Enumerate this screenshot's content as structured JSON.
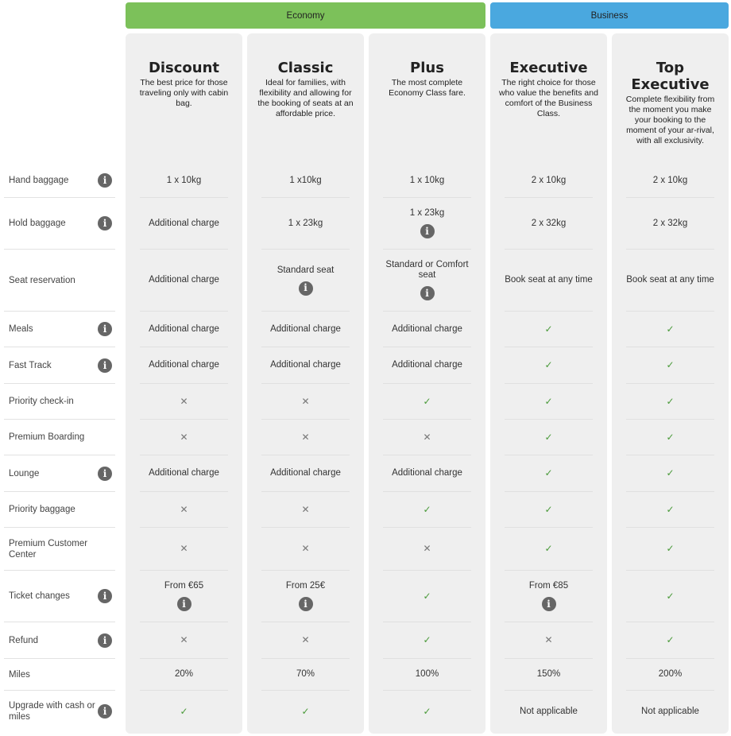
{
  "colors": {
    "economy": "#7cc15a",
    "business": "#4aa8df",
    "check": "#4a9a3a",
    "info": "#666666"
  },
  "groups": [
    {
      "id": "economy",
      "label": "Economy"
    },
    {
      "id": "business",
      "label": "Business"
    }
  ],
  "plans": [
    {
      "name": "Discount",
      "desc": "The best price for those traveling only with cabin bag."
    },
    {
      "name": "Classic",
      "desc": "Ideal for families, with flexibility and allowing for the booking of seats at an affordable price."
    },
    {
      "name": "Plus",
      "desc": "The most complete Economy Class fare."
    },
    {
      "name": "Executive",
      "desc": "The right choice for those who value the benefits and comfort of the Business Class."
    },
    {
      "name": "Top Executive",
      "desc": "Complete flexibility from the moment you make your booking to the moment of your ar-rival, with all exclusivity."
    }
  ],
  "rows": [
    {
      "label": "Hand baggage",
      "info": true,
      "cells": [
        {
          "text": "1 x 10kg"
        },
        {
          "text": "1 x10kg"
        },
        {
          "text": "1 x 10kg"
        },
        {
          "text": "2 x 10kg"
        },
        {
          "text": "2 x 10kg"
        }
      ]
    },
    {
      "label": "Hold baggage",
      "info": true,
      "cells": [
        {
          "text": "Additional charge"
        },
        {
          "text": "1 x 23kg"
        },
        {
          "text": "1 x 23kg",
          "info": true
        },
        {
          "text": "2 x 32kg"
        },
        {
          "text": "2 x 32kg"
        }
      ]
    },
    {
      "label": "Seat reservation",
      "info": false,
      "cells": [
        {
          "text": "Additional charge"
        },
        {
          "text": "Standard seat",
          "info": true
        },
        {
          "text": "Standard or Comfort seat",
          "info": true
        },
        {
          "text": "Book seat at any time"
        },
        {
          "text": "Book seat at any time"
        }
      ]
    },
    {
      "label": "Meals",
      "info": true,
      "cells": [
        {
          "text": "Additional charge"
        },
        {
          "text": "Additional charge"
        },
        {
          "text": "Additional charge"
        },
        {
          "icon": "check"
        },
        {
          "icon": "check"
        }
      ]
    },
    {
      "label": "Fast Track",
      "info": true,
      "cells": [
        {
          "text": "Additional charge"
        },
        {
          "text": "Additional charge"
        },
        {
          "text": "Additional charge"
        },
        {
          "icon": "check"
        },
        {
          "icon": "check"
        }
      ]
    },
    {
      "label": "Priority check-in",
      "info": false,
      "cells": [
        {
          "icon": "cross"
        },
        {
          "icon": "cross"
        },
        {
          "icon": "check"
        },
        {
          "icon": "check"
        },
        {
          "icon": "check"
        }
      ]
    },
    {
      "label": "Premium Boarding",
      "info": false,
      "cells": [
        {
          "icon": "cross"
        },
        {
          "icon": "cross"
        },
        {
          "icon": "cross"
        },
        {
          "icon": "check"
        },
        {
          "icon": "check"
        }
      ]
    },
    {
      "label": "Lounge",
      "info": true,
      "cells": [
        {
          "text": "Additional charge"
        },
        {
          "text": "Additional charge"
        },
        {
          "text": "Additional charge"
        },
        {
          "icon": "check"
        },
        {
          "icon": "check"
        }
      ]
    },
    {
      "label": "Priority baggage",
      "info": false,
      "cells": [
        {
          "icon": "cross"
        },
        {
          "icon": "cross"
        },
        {
          "icon": "check"
        },
        {
          "icon": "check"
        },
        {
          "icon": "check"
        }
      ]
    },
    {
      "label": "Premium Customer Center",
      "info": false,
      "cells": [
        {
          "icon": "cross"
        },
        {
          "icon": "cross"
        },
        {
          "icon": "cross"
        },
        {
          "icon": "check"
        },
        {
          "icon": "check"
        }
      ]
    },
    {
      "label": "Ticket changes",
      "info": true,
      "cells": [
        {
          "text": "From €65",
          "info": true
        },
        {
          "text": "From 25€",
          "info": true
        },
        {
          "icon": "check"
        },
        {
          "text": "From €85",
          "info": true
        },
        {
          "icon": "check"
        }
      ]
    },
    {
      "label": "Refund",
      "info": true,
      "cells": [
        {
          "icon": "cross"
        },
        {
          "icon": "cross"
        },
        {
          "icon": "check"
        },
        {
          "icon": "cross"
        },
        {
          "icon": "check"
        }
      ]
    },
    {
      "label": "Miles",
      "info": false,
      "cells": [
        {
          "text": "20%"
        },
        {
          "text": "70%"
        },
        {
          "text": "100%"
        },
        {
          "text": "150%"
        },
        {
          "text": "200%"
        }
      ]
    },
    {
      "label": "Upgrade with cash or miles",
      "info": true,
      "cells": [
        {
          "icon": "check"
        },
        {
          "icon": "check"
        },
        {
          "icon": "check"
        },
        {
          "text": "Not applicable"
        },
        {
          "text": "Not applicable"
        }
      ]
    }
  ]
}
